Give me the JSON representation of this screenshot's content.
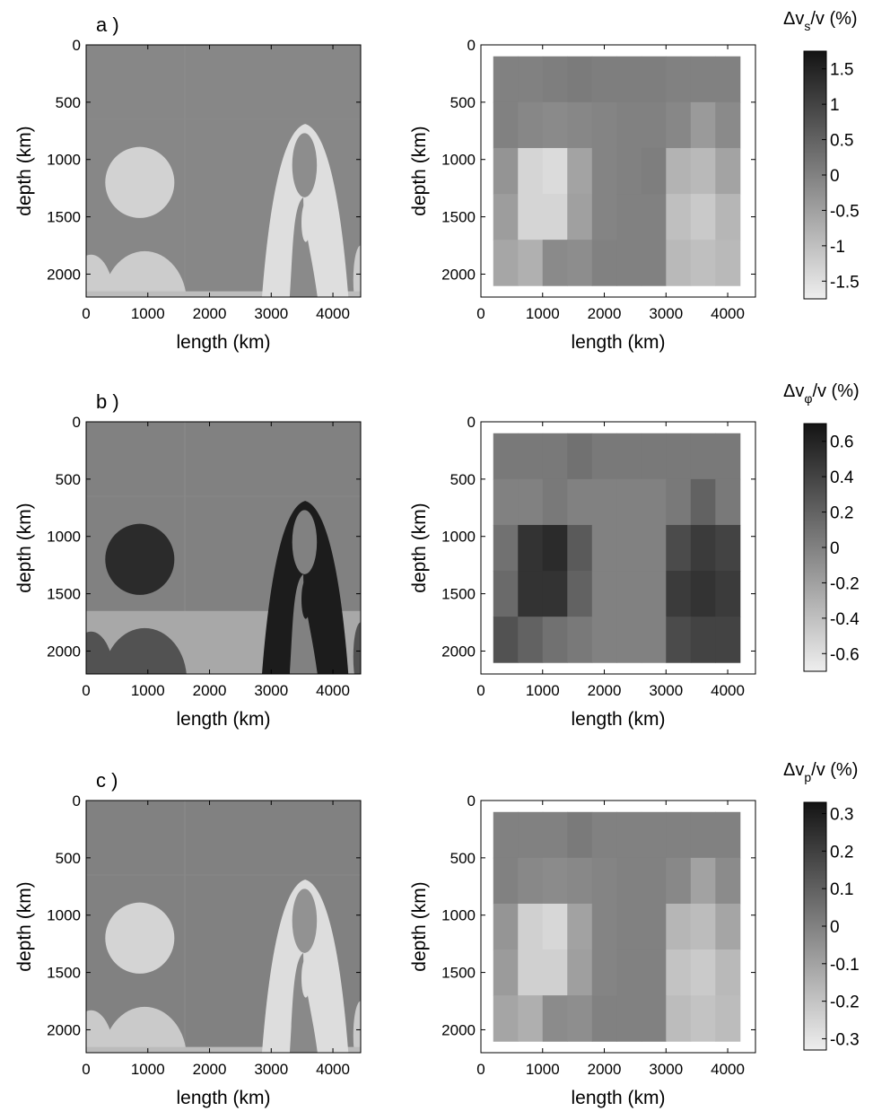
{
  "figure": {
    "rows": [
      {
        "label": "a )",
        "colorbar": {
          "title_parts": [
            "Δv",
            "s",
            "/v (%)"
          ],
          "ticks": [
            "1.5",
            "1",
            "0.5",
            "0",
            "-0.5",
            "-1",
            "-1.5"
          ],
          "tick_values": [
            1.5,
            1,
            0.5,
            0,
            -0.5,
            -1,
            -1.5
          ],
          "range": [
            -1.75,
            1.75
          ]
        }
      },
      {
        "label": "b )",
        "colorbar": {
          "title_parts": [
            "Δv",
            "φ",
            "/v (%)"
          ],
          "ticks": [
            "0.6",
            "0.4",
            "0.2",
            "0",
            "-0.2",
            "-0.4",
            "-0.6"
          ],
          "tick_values": [
            0.6,
            0.4,
            0.2,
            0,
            -0.2,
            -0.4,
            -0.6
          ],
          "range": [
            -0.7,
            0.7
          ]
        }
      },
      {
        "label": "c )",
        "colorbar": {
          "title_parts": [
            "Δv",
            "p",
            "/v (%)"
          ],
          "ticks": [
            "0.3",
            "0.2",
            "0.1",
            "0",
            "-0.1",
            "-0.2",
            "-0.3"
          ],
          "tick_values": [
            0.3,
            0.2,
            0.1,
            0,
            -0.1,
            -0.2,
            -0.3
          ],
          "range": [
            -0.33,
            0.33
          ]
        }
      }
    ],
    "axes": {
      "xlabel": "length (km)",
      "ylabel": "depth (km)",
      "xticks": [
        0,
        1000,
        2000,
        3000,
        4000
      ],
      "yticks": [
        0,
        500,
        1000,
        1500,
        2000
      ],
      "xlim": [
        0,
        4450
      ],
      "ylim": [
        0,
        2200
      ],
      "y_reversed": true
    }
  },
  "chart_data": [
    {
      "type": "heatmap",
      "panel": "a-left",
      "xlabel": "length (km)",
      "ylabel": "depth (km)",
      "colorbar_label": "Δvs/v (%)",
      "xlim": [
        0,
        4450
      ],
      "ylim": [
        2200,
        0
      ],
      "description_values": {
        "background": -0.1,
        "blob_anomaly": -1.3,
        "plume_anomaly": -1.5,
        "plume_core": -0.2,
        "bottom_blobs": -1.2
      }
    },
    {
      "type": "heatmap",
      "panel": "a-right",
      "xlabel": "length (km)",
      "ylabel": "depth (km)",
      "colorbar_label": "Δvs/v (%)",
      "xlim": [
        0,
        4450
      ],
      "ylim": [
        2200,
        0
      ],
      "grid_x_edges": [
        200,
        600,
        1000,
        1400,
        1800,
        2200,
        2600,
        3000,
        3400,
        3800,
        4200
      ],
      "grid_y_edges": [
        100,
        500,
        900,
        1300,
        1700,
        2100
      ],
      "values": [
        [
          0.0,
          0.0,
          0.05,
          0.1,
          0.05,
          0.05,
          0.05,
          0.0,
          0.0,
          0.0
        ],
        [
          0.0,
          -0.1,
          -0.15,
          -0.1,
          -0.05,
          0.0,
          0.0,
          -0.1,
          -0.4,
          -0.15
        ],
        [
          -0.3,
          -1.35,
          -1.45,
          -0.55,
          -0.05,
          0.0,
          0.05,
          -0.8,
          -0.9,
          -0.55
        ],
        [
          -0.45,
          -1.35,
          -1.35,
          -0.5,
          -0.05,
          0.0,
          0.0,
          -1.0,
          -1.15,
          -0.85
        ],
        [
          -0.6,
          -0.75,
          -0.15,
          -0.2,
          0.0,
          0.0,
          0.0,
          -0.9,
          -1.0,
          -0.9
        ]
      ]
    },
    {
      "type": "heatmap",
      "panel": "b-left",
      "xlabel": "length (km)",
      "ylabel": "depth (km)",
      "colorbar_label": "Δvφ/v (%)",
      "xlim": [
        0,
        4450
      ],
      "ylim": [
        2200,
        0
      ],
      "description_values": {
        "background": 0.0,
        "blob_anomaly": 0.55,
        "plume_anomaly": 0.65,
        "plume_core": 0.0,
        "bottom_blobs": 0.3,
        "bottom_band": -0.25
      }
    },
    {
      "type": "heatmap",
      "panel": "b-right",
      "xlabel": "length (km)",
      "ylabel": "depth (km)",
      "colorbar_label": "Δvφ/v (%)",
      "xlim": [
        0,
        4450
      ],
      "ylim": [
        2200,
        0
      ],
      "grid_x_edges": [
        200,
        600,
        1000,
        1400,
        1800,
        2200,
        2600,
        3000,
        3400,
        3800,
        4200
      ],
      "grid_y_edges": [
        100,
        500,
        900,
        1300,
        1700,
        2100
      ],
      "values": [
        [
          0.05,
          0.05,
          0.05,
          0.1,
          0.05,
          0.05,
          0.05,
          0.05,
          0.05,
          0.05
        ],
        [
          0.0,
          0.0,
          0.05,
          0.0,
          0.0,
          0.0,
          0.0,
          0.05,
          0.2,
          0.05
        ],
        [
          0.1,
          0.5,
          0.55,
          0.25,
          0.0,
          0.0,
          0.0,
          0.35,
          0.45,
          0.4
        ],
        [
          0.15,
          0.5,
          0.5,
          0.2,
          0.0,
          0.0,
          0.0,
          0.45,
          0.5,
          0.45
        ],
        [
          0.3,
          0.2,
          0.1,
          0.05,
          0.0,
          0.0,
          0.0,
          0.35,
          0.4,
          0.4
        ]
      ]
    },
    {
      "type": "heatmap",
      "panel": "c-left",
      "xlabel": "length (km)",
      "ylabel": "depth (km)",
      "colorbar_label": "Δvp/v (%)",
      "xlim": [
        0,
        4450
      ],
      "ylim": [
        2200,
        0
      ],
      "description_values": {
        "background": 0.0,
        "blob_anomaly": -0.25,
        "plume_anomaly": -0.28,
        "plume_core": -0.05,
        "bottom_blobs": -0.22
      }
    },
    {
      "type": "heatmap",
      "panel": "c-right",
      "xlabel": "length (km)",
      "ylabel": "depth (km)",
      "colorbar_label": "Δvp/v (%)",
      "xlim": [
        0,
        4450
      ],
      "ylim": [
        2200,
        0
      ],
      "grid_x_edges": [
        200,
        600,
        1000,
        1400,
        1800,
        2200,
        2600,
        3000,
        3400,
        3800,
        4200
      ],
      "grid_y_edges": [
        100,
        500,
        900,
        1300,
        1700,
        2100
      ],
      "values": [
        [
          0.0,
          0.0,
          0.0,
          0.02,
          0.0,
          0.0,
          0.0,
          0.0,
          0.0,
          0.0
        ],
        [
          0.0,
          -0.02,
          -0.03,
          -0.02,
          -0.01,
          0.0,
          0.0,
          -0.02,
          -0.1,
          -0.03
        ],
        [
          -0.06,
          -0.24,
          -0.26,
          -0.1,
          -0.01,
          0.0,
          0.0,
          -0.16,
          -0.18,
          -0.11
        ],
        [
          -0.08,
          -0.24,
          -0.24,
          -0.09,
          -0.01,
          0.0,
          0.0,
          -0.2,
          -0.22,
          -0.17
        ],
        [
          -0.11,
          -0.14,
          -0.03,
          -0.04,
          0.0,
          0.0,
          0.0,
          -0.18,
          -0.2,
          -0.18
        ]
      ]
    }
  ]
}
